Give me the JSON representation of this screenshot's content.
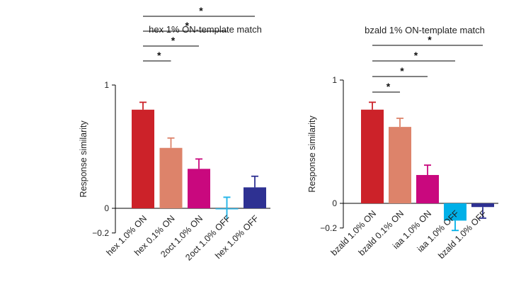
{
  "figure": {
    "panels_count": 2
  },
  "chart_data": [
    {
      "type": "bar",
      "title": "hex 1% ON-template match",
      "ylabel": "Response similarity",
      "xlabel": "",
      "ylim": [
        -0.2,
        1
      ],
      "yticks": [
        {
          "value": 1,
          "label": "1"
        },
        {
          "value": 0,
          "label": "0"
        },
        {
          "value": -0.2,
          "label": "−0.2"
        }
      ],
      "categories": [
        "hex 1.0% ON",
        "hex 0.1% ON",
        "2oct 1.0% ON",
        "2oct 1.0% OFF",
        "hex 1.0% OFF"
      ],
      "values": [
        0.8,
        0.49,
        0.32,
        0.0,
        0.17
      ],
      "errors": [
        0.06,
        0.08,
        0.08,
        0.09,
        0.09
      ],
      "colors": [
        "#cc2229",
        "#dd836a",
        "#c9087e",
        "#29b6e8",
        "#2e3192"
      ],
      "significance": [
        {
          "from": 0,
          "to": 1,
          "label": "*"
        },
        {
          "from": 0,
          "to": 2,
          "label": "*"
        },
        {
          "from": 0,
          "to": 3,
          "label": "*"
        },
        {
          "from": 0,
          "to": 4,
          "label": "*"
        }
      ],
      "grid": false,
      "legend": "none"
    },
    {
      "type": "bar",
      "title": "bzald 1% ON-template match",
      "ylabel": "Response similarity",
      "xlabel": "",
      "ylim": [
        -0.2,
        1
      ],
      "yticks": [
        {
          "value": 1,
          "label": "1"
        },
        {
          "value": 0,
          "label": "0"
        },
        {
          "value": -0.2,
          "label": "−0.2"
        }
      ],
      "categories": [
        "bzald 1.0% ON",
        "bzald 0.1% ON",
        "iaa 1.0% ON",
        "iaa 1.0% OFF",
        "bzald 1.0% OFF"
      ],
      "values": [
        0.76,
        0.62,
        0.23,
        -0.14,
        -0.03
      ],
      "errors": [
        0.06,
        0.07,
        0.08,
        0.08,
        0.09
      ],
      "colors": [
        "#cc2229",
        "#dd836a",
        "#c9087e",
        "#00b0e8",
        "#2e3192"
      ],
      "significance": [
        {
          "from": 0,
          "to": 1,
          "label": "*"
        },
        {
          "from": 0,
          "to": 2,
          "label": "*"
        },
        {
          "from": 0,
          "to": 3,
          "label": "*"
        },
        {
          "from": 0,
          "to": 4,
          "label": "*"
        }
      ],
      "grid": false,
      "legend": "none"
    }
  ]
}
